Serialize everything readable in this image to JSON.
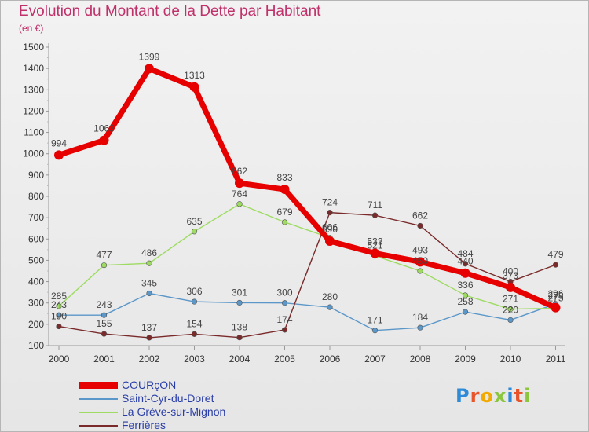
{
  "header": {
    "title": "Evolution du Montant de la Dette par Habitant",
    "unit": "(en €)"
  },
  "logo": {
    "text": "Proxiti",
    "letters": [
      "P",
      "r",
      "o",
      "x",
      "i",
      "t",
      "i"
    ],
    "colors": [
      "#2e8bd8",
      "#e8552a",
      "#f2a900",
      "#8cc63f",
      "#2e8bd8",
      "#e8552a",
      "#8cc63f"
    ]
  },
  "chart_data": {
    "type": "line",
    "title": "Evolution du Montant de la Dette par Habitant",
    "ylabel": "(en €)",
    "categories": [
      "2000",
      "2001",
      "2002",
      "2003",
      "2004",
      "2005",
      "2006",
      "2007",
      "2008",
      "2009",
      "2010",
      "2011"
    ],
    "yticks": [
      100,
      200,
      300,
      400,
      500,
      600,
      700,
      800,
      900,
      1000,
      1100,
      1200,
      1300,
      1400,
      1500
    ],
    "ylim": [
      100,
      1500
    ],
    "grid": false,
    "legend_position": "bottom-left",
    "series": [
      {
        "name": "COURçON",
        "color": "#e60000",
        "values": [
          994,
          1063,
          1399,
          1313,
          862,
          833,
          590,
          533,
          493,
          440,
          373,
          278
        ],
        "labels": [
          "994",
          "1063",
          "1399",
          "1313",
          "862",
          "833",
          "590",
          "533",
          "493",
          "440",
          "373",
          "278"
        ]
      },
      {
        "name": "Saint-Cyr-du-Doret",
        "color": "#5b97c9",
        "values": [
          243,
          243,
          345,
          306,
          301,
          300,
          280,
          171,
          184,
          258,
          220,
          296
        ],
        "labels": [
          "243",
          "243",
          "345",
          "306",
          "301",
          "300",
          "280",
          "171",
          "184",
          "258",
          "220",
          "296"
        ]
      },
      {
        "name": "La Grève-sur-Mignon",
        "color": "#9edb62",
        "values": [
          285,
          477,
          486,
          635,
          764,
          679,
          606,
          521,
          450,
          336,
          271,
          275
        ],
        "labels": [
          "285",
          "477",
          "486",
          "635",
          "764",
          "679",
          "606",
          "521",
          "450",
          "336",
          "271",
          "275"
        ]
      },
      {
        "name": "Ferrières",
        "color": "#7a2a2a",
        "values": [
          190,
          155,
          137,
          154,
          138,
          174,
          724,
          711,
          662,
          484,
          400,
          479
        ],
        "labels": [
          "190",
          "155",
          "137",
          "154",
          "138",
          "174",
          "724",
          "711",
          "662",
          "484",
          "400",
          "479"
        ]
      }
    ]
  }
}
